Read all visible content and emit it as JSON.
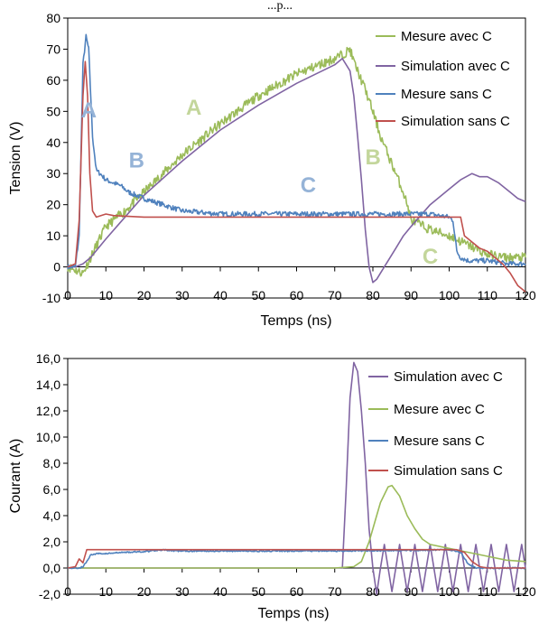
{
  "top_caption": "...p...",
  "chart_data": [
    {
      "type": "line",
      "xlabel": "Temps (ns)",
      "ylabel": "Tension (V)",
      "xlim": [
        0,
        120
      ],
      "ylim": [
        -10,
        80
      ],
      "xticks": [
        "0",
        "10",
        "20",
        "30",
        "40",
        "50",
        "60",
        "70",
        "80",
        "90",
        "100",
        "110",
        "120"
      ],
      "yticks": [
        "-10",
        "0",
        "10",
        "20",
        "30",
        "40",
        "50",
        "60",
        "70",
        "80"
      ],
      "grid": false,
      "legend": "top-right",
      "series": [
        {
          "name": "Mesure avec C",
          "color": "#9BBB59",
          "noise": 1.5,
          "seed": 11,
          "points": [
            [
              0,
              0
            ],
            [
              2,
              -1
            ],
            [
              4,
              -2
            ],
            [
              6,
              3
            ],
            [
              8,
              8
            ],
            [
              10,
              13
            ],
            [
              15,
              18
            ],
            [
              20,
              24
            ],
            [
              30,
              36
            ],
            [
              40,
              46
            ],
            [
              50,
              55
            ],
            [
              60,
              62
            ],
            [
              70,
              67
            ],
            [
              73,
              69
            ],
            [
              74,
              70
            ],
            [
              75,
              66
            ],
            [
              78,
              57
            ],
            [
              80,
              50
            ],
            [
              82,
              42
            ],
            [
              85,
              33
            ],
            [
              88,
              24
            ],
            [
              89,
              20
            ],
            [
              90,
              15
            ],
            [
              95,
              12
            ],
            [
              100,
              10
            ],
            [
              105,
              7
            ],
            [
              110,
              4
            ],
            [
              115,
              3
            ],
            [
              120,
              3
            ]
          ]
        },
        {
          "name": "Simulation avec C",
          "color": "#8064A2",
          "noise": 0,
          "seed": 0,
          "points": [
            [
              0,
              0
            ],
            [
              2,
              0
            ],
            [
              4,
              1
            ],
            [
              6,
              3
            ],
            [
              10,
              9
            ],
            [
              20,
              23
            ],
            [
              30,
              34
            ],
            [
              40,
              44
            ],
            [
              50,
              52
            ],
            [
              60,
              59
            ],
            [
              70,
              65
            ],
            [
              72,
              67
            ],
            [
              74,
              63
            ],
            [
              75,
              55
            ],
            [
              76,
              42
            ],
            [
              77,
              28
            ],
            [
              78,
              12
            ],
            [
              79,
              0
            ],
            [
              80,
              -5
            ],
            [
              81,
              -4
            ],
            [
              82,
              -2
            ],
            [
              84,
              2
            ],
            [
              86,
              6
            ],
            [
              88,
              10
            ],
            [
              90,
              13
            ],
            [
              95,
              20
            ],
            [
              100,
              25
            ],
            [
              103,
              28
            ],
            [
              106,
              30
            ],
            [
              108,
              29
            ],
            [
              110,
              29
            ],
            [
              113,
              27
            ],
            [
              116,
              24
            ],
            [
              118,
              22
            ],
            [
              120,
              21
            ]
          ]
        },
        {
          "name": "Mesure sans C",
          "color": "#4F81BD",
          "noise": 0.8,
          "seed": 7,
          "points": [
            [
              0,
              0
            ],
            [
              2,
              0
            ],
            [
              3,
              10
            ],
            [
              4,
              65
            ],
            [
              4.8,
              74
            ],
            [
              5.5,
              70
            ],
            [
              6.5,
              42
            ],
            [
              7.5,
              31
            ],
            [
              8.5,
              30
            ],
            [
              10,
              28
            ],
            [
              12,
              27
            ],
            [
              14,
              26
            ],
            [
              16,
              24
            ],
            [
              18,
              23
            ],
            [
              20,
              22
            ],
            [
              25,
              20
            ],
            [
              30,
              18
            ],
            [
              40,
              17
            ],
            [
              60,
              17
            ],
            [
              80,
              17
            ],
            [
              95,
              17
            ],
            [
              100,
              16
            ],
            [
              101,
              15
            ],
            [
              102,
              5
            ],
            [
              103,
              3
            ],
            [
              105,
              2
            ],
            [
              110,
              2
            ],
            [
              115,
              1
            ],
            [
              120,
              1
            ]
          ]
        },
        {
          "name": "Simulation sans C",
          "color": "#C0504D",
          "noise": 0,
          "seed": 0,
          "points": [
            [
              0,
              0
            ],
            [
              2,
              1
            ],
            [
              3,
              15
            ],
            [
              4,
              55
            ],
            [
              4.6,
              66
            ],
            [
              5.2,
              55
            ],
            [
              5.8,
              30
            ],
            [
              6.5,
              18
            ],
            [
              7.5,
              16
            ],
            [
              10,
              17
            ],
            [
              12,
              16.5
            ],
            [
              20,
              16
            ],
            [
              100,
              16
            ],
            [
              102,
              16
            ],
            [
              103,
              16
            ],
            [
              104,
              10
            ],
            [
              106,
              8
            ],
            [
              108,
              6
            ],
            [
              110,
              5
            ],
            [
              112,
              3
            ],
            [
              114,
              1
            ],
            [
              116,
              -2
            ],
            [
              118,
              -6
            ],
            [
              120,
              -8
            ]
          ]
        }
      ],
      "annotations": [
        {
          "text": "A",
          "x": 3.5,
          "y": 48,
          "color": "#95B3D7"
        },
        {
          "text": "B",
          "x": 16,
          "y": 32,
          "color": "#95B3D7"
        },
        {
          "text": "C",
          "x": 61,
          "y": 24,
          "color": "#95B3D7"
        },
        {
          "text": "A",
          "x": 31,
          "y": 49,
          "color": "#C3D69B"
        },
        {
          "text": "B",
          "x": 78,
          "y": 33,
          "color": "#C3D69B"
        },
        {
          "text": "C",
          "x": 93,
          "y": 1,
          "color": "#C3D69B"
        }
      ]
    },
    {
      "type": "line",
      "xlabel": "Temps (ns)",
      "ylabel": "Courant (A)",
      "xlim": [
        0,
        120
      ],
      "ylim": [
        -2,
        16
      ],
      "xticks": [
        "0",
        "10",
        "20",
        "30",
        "40",
        "50",
        "60",
        "70",
        "80",
        "90",
        "100",
        "110",
        "120"
      ],
      "yticks": [
        "-2,0",
        "0,0",
        "2,0",
        "4,0",
        "6,0",
        "8,0",
        "10,0",
        "12,0",
        "14,0",
        "16,0"
      ],
      "grid": false,
      "legend": "top-right",
      "series": [
        {
          "name": "Simulation avec C",
          "color": "#8064A2",
          "noise": 0,
          "seed": 0,
          "points": [
            [
              0,
              0
            ],
            [
              20,
              0
            ],
            [
              40,
              0
            ],
            [
              60,
              0
            ],
            [
              70,
              0
            ],
            [
              72,
              0
            ],
            [
              73,
              6
            ],
            [
              74,
              13
            ],
            [
              75,
              15.7
            ],
            [
              76,
              15
            ],
            [
              77,
              12
            ],
            [
              78,
              8
            ],
            [
              79,
              3
            ],
            [
              80,
              0
            ],
            [
              81,
              -2
            ],
            [
              82,
              0
            ],
            [
              83,
              1.8
            ],
            [
              84,
              0
            ],
            [
              85,
              -1.8
            ],
            [
              86,
              0
            ],
            [
              87,
              1.8
            ],
            [
              88,
              0
            ],
            [
              89,
              -1.8
            ],
            [
              90,
              0
            ],
            [
              91,
              1.8
            ],
            [
              92,
              0
            ],
            [
              93,
              -1.8
            ],
            [
              94,
              0
            ],
            [
              95,
              1.8
            ],
            [
              96,
              0
            ],
            [
              97,
              -1.8
            ],
            [
              98,
              0
            ],
            [
              99,
              1.8
            ],
            [
              100,
              0
            ],
            [
              101,
              -1.8
            ],
            [
              102,
              0
            ],
            [
              103,
              1.8
            ],
            [
              104,
              0
            ],
            [
              105,
              -1.8
            ],
            [
              106,
              0
            ],
            [
              107,
              1.8
            ],
            [
              108,
              0
            ],
            [
              109,
              -1.8
            ],
            [
              110,
              0
            ],
            [
              111,
              1.8
            ],
            [
              112,
              0
            ],
            [
              113,
              -1.8
            ],
            [
              114,
              0
            ],
            [
              115,
              1.8
            ],
            [
              116,
              0
            ],
            [
              117,
              -1.8
            ],
            [
              118,
              0
            ],
            [
              119,
              1.8
            ],
            [
              120,
              0
            ]
          ]
        },
        {
          "name": "Mesure avec C",
          "color": "#9BBB59",
          "noise": 0,
          "seed": 0,
          "points": [
            [
              0,
              0
            ],
            [
              10,
              0
            ],
            [
              30,
              0
            ],
            [
              50,
              0
            ],
            [
              70,
              0
            ],
            [
              75,
              0.1
            ],
            [
              77,
              0.5
            ],
            [
              79,
              2
            ],
            [
              80,
              3
            ],
            [
              82,
              5
            ],
            [
              84,
              6.2
            ],
            [
              85,
              6.3
            ],
            [
              87,
              5.5
            ],
            [
              89,
              4
            ],
            [
              91,
              3
            ],
            [
              93,
              2.2
            ],
            [
              95,
              1.8
            ],
            [
              100,
              1.5
            ],
            [
              105,
              1.2
            ],
            [
              110,
              0.9
            ],
            [
              115,
              0.6
            ],
            [
              120,
              0.5
            ]
          ]
        },
        {
          "name": "Mesure sans C",
          "color": "#4F81BD",
          "noise": 0.05,
          "seed": 5,
          "points": [
            [
              0,
              0
            ],
            [
              3,
              0
            ],
            [
              4,
              0.1
            ],
            [
              5,
              0.5
            ],
            [
              6,
              1
            ],
            [
              8,
              1.1
            ],
            [
              10,
              1.1
            ],
            [
              15,
              1.2
            ],
            [
              20,
              1.25
            ],
            [
              25,
              1.4
            ],
            [
              27,
              1.3
            ],
            [
              30,
              1.3
            ],
            [
              50,
              1.3
            ],
            [
              70,
              1.3
            ],
            [
              90,
              1.35
            ],
            [
              100,
              1.4
            ],
            [
              103,
              1.2
            ],
            [
              105,
              0.3
            ],
            [
              107,
              0
            ],
            [
              120,
              0
            ]
          ]
        },
        {
          "name": "Simulation sans C",
          "color": "#C0504D",
          "noise": 0,
          "seed": 0,
          "points": [
            [
              0,
              0
            ],
            [
              2,
              0.1
            ],
            [
              3,
              0.7
            ],
            [
              4,
              0.4
            ],
            [
              5,
              1.4
            ],
            [
              6,
              1.4
            ],
            [
              10,
              1.4
            ],
            [
              50,
              1.4
            ],
            [
              100,
              1.4
            ],
            [
              102,
              1.4
            ],
            [
              104,
              1.2
            ],
            [
              106,
              0.5
            ],
            [
              108,
              0.1
            ],
            [
              110,
              0
            ],
            [
              120,
              0
            ]
          ]
        }
      ],
      "annotations": []
    }
  ]
}
